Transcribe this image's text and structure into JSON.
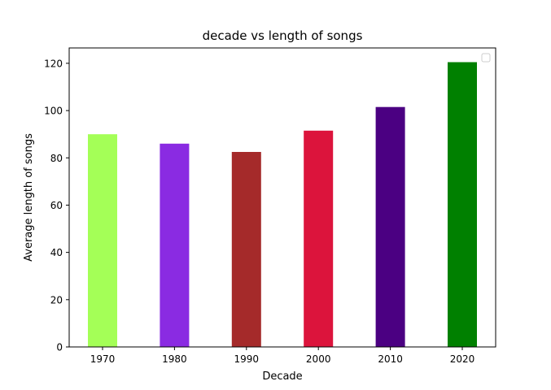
{
  "chart_data": {
    "type": "bar",
    "title": "decade vs length of songs",
    "xlabel": "Decade",
    "ylabel": "Average length of songs",
    "categories": [
      "1970",
      "1980",
      "1990",
      "2000",
      "2010",
      "2020"
    ],
    "values": [
      90,
      86,
      82.5,
      91.5,
      101.5,
      120.5
    ],
    "colors": [
      "#a4ff57",
      "#8a2be2",
      "#a52a2a",
      "#dc143c",
      "#4b0082",
      "#008000"
    ],
    "ylim": [
      0,
      126.5
    ],
    "yticks": [
      0,
      20,
      40,
      60,
      80,
      100,
      120
    ],
    "grid": false,
    "legend": {
      "placement": "top-right",
      "entries": []
    }
  }
}
